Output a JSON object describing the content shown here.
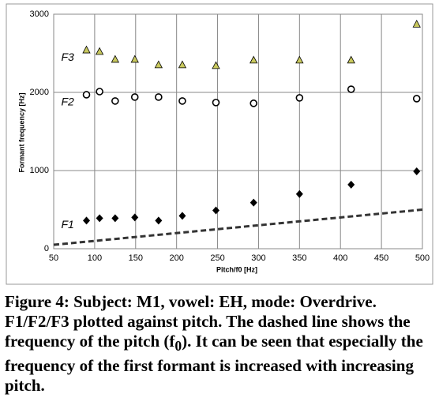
{
  "chart_data": {
    "type": "scatter",
    "xlabel": "Pitch/f0 [Hz]",
    "ylabel": "Formant frequency [Hz]",
    "xlim": [
      50,
      500
    ],
    "ylim": [
      0,
      3000
    ],
    "xticks": [
      50,
      100,
      150,
      200,
      250,
      300,
      350,
      400,
      450,
      500
    ],
    "yticks": [
      0,
      1000,
      2000,
      3000
    ],
    "grid": true,
    "series": [
      {
        "name": "F3",
        "marker": "triangle",
        "color": "#c9c95e",
        "x": [
          90,
          106,
          125,
          149,
          178,
          207,
          248,
          294,
          350,
          413,
          493
        ],
        "values": [
          2540,
          2520,
          2420,
          2420,
          2350,
          2350,
          2340,
          2410,
          2410,
          2410,
          2870
        ]
      },
      {
        "name": "F2",
        "marker": "circle",
        "color": "#ffffff",
        "x": [
          90,
          106,
          125,
          149,
          178,
          207,
          248,
          294,
          350,
          413,
          493
        ],
        "values": [
          1970,
          2010,
          1890,
          1940,
          1940,
          1890,
          1870,
          1860,
          1930,
          2040,
          1920
        ]
      },
      {
        "name": "F1",
        "marker": "diamond",
        "color": "#000000",
        "x": [
          90,
          106,
          125,
          149,
          178,
          207,
          248,
          294,
          350,
          413,
          493
        ],
        "values": [
          360,
          390,
          390,
          400,
          360,
          420,
          490,
          590,
          700,
          820,
          990
        ]
      }
    ],
    "f0_line": {
      "x": [
        50,
        500
      ],
      "values": [
        50,
        500
      ],
      "color": "#333333"
    }
  },
  "caption": {
    "before": "Figure 4: Subject: M1, vowel: EH, mode: Overdrive. F1/F2/F3 plotted against pitch. The dashed line shows the frequency of the pitch (f",
    "subscript": "0",
    "after": "). It can be seen that especially the frequency of the first formant is increased with increasing pitch."
  }
}
